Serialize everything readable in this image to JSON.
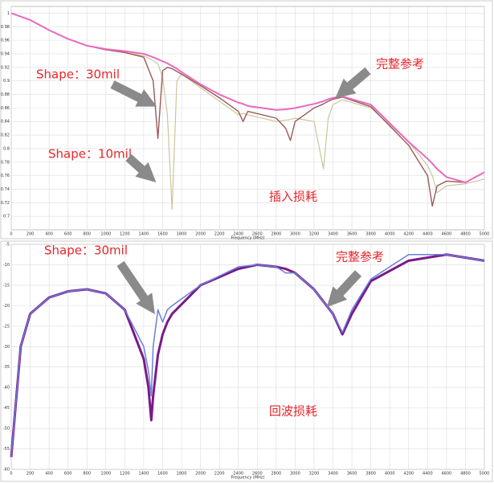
{
  "chart_data": [
    {
      "type": "line",
      "grid": true,
      "xlabel": "Frequency (MHz)",
      "annotations": [
        "Shape：30mil",
        "Shape：10mil",
        "完整参考",
        "插入损耗"
      ],
      "x": [
        0,
        200,
        400,
        600,
        800,
        1000,
        1200,
        1400,
        1500,
        1550,
        1600,
        1650,
        1700,
        1750,
        1800,
        2000,
        2200,
        2400,
        2450,
        2500,
        2800,
        2900,
        2950,
        3000,
        3200,
        3300,
        3350,
        3400,
        3500,
        3800,
        4200,
        4400,
        4450,
        4500,
        4600,
        4800,
        5000
      ],
      "xlim": [
        0,
        5000
      ],
      "xticks": [
        0,
        200,
        400,
        600,
        800,
        1000,
        1200,
        1400,
        1600,
        1800,
        2000,
        2200,
        2400,
        2600,
        2800,
        3000,
        3200,
        3400,
        3600,
        3800,
        4000,
        4200,
        4400,
        4600,
        4800,
        5000
      ],
      "ylim": [
        0.68,
        1.01
      ],
      "yticks": [
        0.7,
        0.72,
        0.74,
        0.76,
        0.78,
        0.8,
        0.82,
        0.84,
        0.86,
        0.88,
        0.9,
        0.92,
        0.94,
        0.96,
        0.98,
        1
      ],
      "series": [
        {
          "color": "#c9c79a",
          "width": 1.2,
          "values": [
            1,
            0.99,
            0.975,
            0.962,
            0.952,
            0.946,
            0.942,
            0.937,
            0.93,
            0.925,
            0.905,
            0.85,
            0.71,
            0.9,
            0.91,
            0.89,
            0.87,
            0.85,
            0.852,
            0.85,
            0.84,
            0.842,
            0.843,
            0.845,
            0.84,
            0.77,
            0.845,
            0.865,
            0.872,
            0.86,
            0.81,
            0.775,
            0.76,
            0.735,
            0.745,
            0.748,
            0.755
          ]
        },
        {
          "color": "#9b5a5a",
          "width": 1.4,
          "values": [
            1,
            0.99,
            0.975,
            0.962,
            0.952,
            0.946,
            0.942,
            0.935,
            0.9,
            0.815,
            0.915,
            0.92,
            0.918,
            0.914,
            0.91,
            0.893,
            0.875,
            0.855,
            0.84,
            0.855,
            0.845,
            0.83,
            0.812,
            0.84,
            0.86,
            0.866,
            0.87,
            0.873,
            0.876,
            0.862,
            0.805,
            0.76,
            0.715,
            0.745,
            0.752,
            0.75,
            0.765
          ]
        },
        {
          "color": "#e86ac0",
          "width": 2,
          "values": [
            1,
            0.99,
            0.975,
            0.962,
            0.952,
            0.947,
            0.944,
            0.94,
            0.935,
            0.932,
            0.929,
            0.926,
            0.922,
            0.918,
            0.913,
            0.895,
            0.88,
            0.868,
            0.866,
            0.863,
            0.857,
            0.858,
            0.859,
            0.86,
            0.866,
            0.87,
            0.873,
            0.875,
            0.877,
            0.865,
            0.81,
            0.785,
            0.778,
            0.77,
            0.758,
            0.75,
            0.765
          ]
        }
      ]
    },
    {
      "type": "line",
      "grid": true,
      "xlabel": "Frequency (MHz)",
      "annotations": [
        "Shape：30mil",
        "完整参考",
        "回波损耗"
      ],
      "x": [
        0,
        100,
        200,
        400,
        600,
        800,
        1000,
        1200,
        1400,
        1450,
        1480,
        1500,
        1550,
        1600,
        1650,
        1700,
        2000,
        2400,
        2600,
        2800,
        2900,
        3000,
        3200,
        3400,
        3500,
        3600,
        3800,
        4200,
        4600,
        5000
      ],
      "xlim": [
        0,
        5000
      ],
      "xticks": [
        0,
        200,
        400,
        600,
        800,
        1000,
        1200,
        1400,
        1600,
        1800,
        2000,
        2200,
        2400,
        2600,
        2800,
        3000,
        3200,
        3400,
        3600,
        3800,
        4000,
        4200,
        4400,
        4600,
        4800,
        5000
      ],
      "ylim": [
        -60,
        -5
      ],
      "yticks": [
        -5,
        -10,
        -15,
        -20,
        -25,
        -30,
        -35,
        -40,
        -45,
        -50,
        -55,
        -60
      ],
      "series": [
        {
          "color": "#7a1a8a",
          "width": 3,
          "values": [
            -57,
            -30,
            -22,
            -18,
            -16.5,
            -16,
            -17,
            -21,
            -33,
            -40,
            -48,
            -42,
            -32,
            -27,
            -24,
            -22,
            -15,
            -11,
            -10,
            -10.5,
            -11,
            -12,
            -16,
            -22,
            -27,
            -22,
            -14,
            -9,
            -7.5,
            -9
          ]
        },
        {
          "color": "#6a7fd8",
          "width": 1.5,
          "values": [
            -57,
            -30,
            -22,
            -18,
            -16.5,
            -16,
            -17,
            -21,
            -30,
            -36,
            -42,
            -30,
            -21,
            -24,
            -21,
            -20,
            -15,
            -10.5,
            -10,
            -10.5,
            -12,
            -12,
            -16,
            -22,
            -26.5,
            -21,
            -13.5,
            -7.5,
            -7.5,
            -9
          ]
        }
      ]
    }
  ]
}
